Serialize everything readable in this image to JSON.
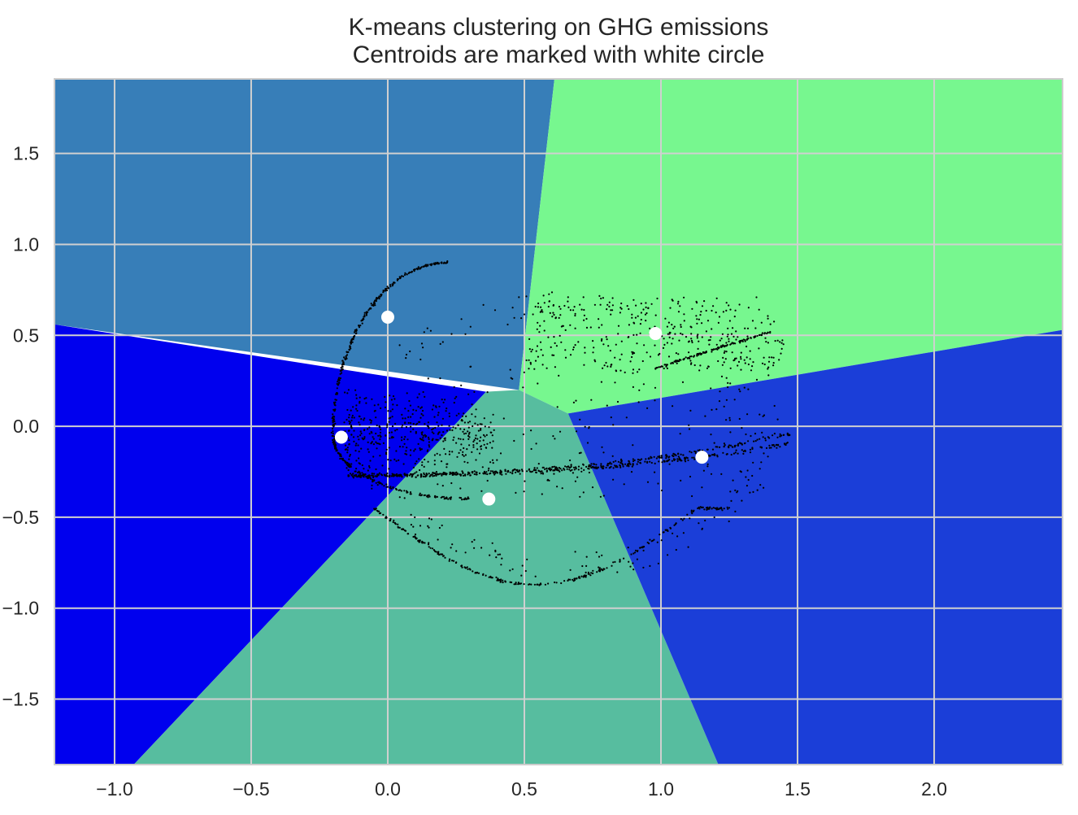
{
  "chart_data": {
    "type": "scatter",
    "title": "K-means clustering on GHG emissions",
    "subtitle": "Centroids are marked with white circle",
    "xlabel": "",
    "ylabel": "",
    "xlim": [
      -1.22,
      2.47
    ],
    "ylim": [
      -1.86,
      1.91
    ],
    "xticks": [
      -1.0,
      -0.5,
      0.0,
      0.5,
      1.0,
      1.5,
      2.0
    ],
    "xtick_labels": [
      "−1.0",
      "−0.5",
      "0.0",
      "0.5",
      "1.0",
      "1.5",
      "2.0"
    ],
    "yticks": [
      1.5,
      1.0,
      0.5,
      0.0,
      -0.5,
      -1.0,
      -1.5
    ],
    "ytick_labels": [
      "1.5",
      "1.0",
      "0.5",
      "0.0",
      "−0.5",
      "−1.0",
      "−1.5"
    ],
    "grid": true,
    "grid_color": "#d0d0d0",
    "plot_border_color": "#cccccc",
    "region_colors": {
      "upper_left": "#377eb8",
      "upper_right": "#77f78f",
      "left": "#0000ee",
      "bottom_center": "#57bd9f",
      "right": "#1b3ed8"
    },
    "regions": [
      {
        "name": "upper_left",
        "points": [
          [
            -1.22,
            1.91
          ],
          [
            0.61,
            1.91
          ],
          [
            0.48,
            0.2
          ],
          [
            -1.22,
            0.56
          ]
        ]
      },
      {
        "name": "upper_right",
        "points": [
          [
            0.61,
            1.91
          ],
          [
            2.47,
            1.91
          ],
          [
            2.47,
            0.53
          ],
          [
            0.66,
            0.07
          ],
          [
            0.48,
            0.2
          ]
        ]
      },
      {
        "name": "left",
        "points": [
          [
            -1.22,
            0.56
          ],
          [
            0.36,
            0.19
          ],
          [
            -0.93,
            -1.86
          ],
          [
            -1.22,
            -1.86
          ]
        ]
      },
      {
        "name": "bottom_center",
        "points": [
          [
            0.36,
            0.19
          ],
          [
            0.48,
            0.2
          ],
          [
            0.66,
            0.07
          ],
          [
            1.21,
            -1.86
          ],
          [
            -0.93,
            -1.86
          ]
        ]
      },
      {
        "name": "right",
        "points": [
          [
            0.66,
            0.07
          ],
          [
            2.47,
            0.53
          ],
          [
            2.47,
            -1.86
          ],
          [
            1.21,
            -1.86
          ]
        ]
      }
    ],
    "centroids": [
      {
        "x": 0.0,
        "y": 0.6
      },
      {
        "x": -0.17,
        "y": -0.06
      },
      {
        "x": 0.37,
        "y": -0.4
      },
      {
        "x": 0.98,
        "y": 0.51
      },
      {
        "x": 1.15,
        "y": -0.17
      }
    ],
    "centroid_color": "#ffffff",
    "point_color": "#000000",
    "point_count_estimate": 2600
  }
}
